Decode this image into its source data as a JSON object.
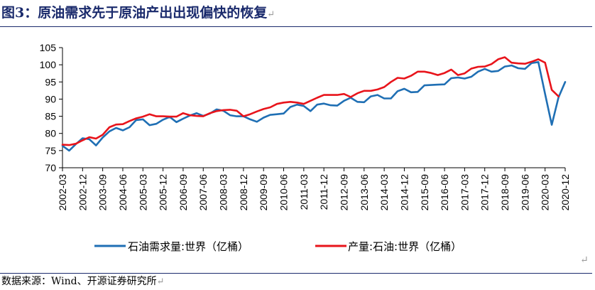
{
  "title": "图3：原油需求先于原油产出出现偏快的恢复",
  "source": "数据来源：Wind、开源证券研究所",
  "return_mark": "↵",
  "chart_data": {
    "type": "line",
    "title": "",
    "xlabel": "",
    "ylabel": "",
    "ylim": [
      70,
      105
    ],
    "yticks": [
      70,
      75,
      80,
      85,
      90,
      95,
      100,
      105
    ],
    "xtick_labels": [
      "2002-03",
      "2002-12",
      "2003-09",
      "2004-06",
      "2005-03",
      "2005-12",
      "2006-09",
      "2007-06",
      "2008-03",
      "2008-12",
      "2009-09",
      "2010-06",
      "2011-03",
      "2011-12",
      "2012-09",
      "2013-06",
      "2014-03",
      "2014-12",
      "2015-09",
      "2016-06",
      "2017-03",
      "2017-12",
      "2018-09",
      "2019-06",
      "2020-03",
      "2020-12"
    ],
    "x_start": "2002-03",
    "x_end": "2020-12",
    "legend_position": "bottom",
    "series": [
      {
        "name": "石油需求量:世界（亿桶）",
        "color": "#1f6fb4",
        "values": [
          76.4,
          75.0,
          76.9,
          78.6,
          78.3,
          76.5,
          78.8,
          80.6,
          81.6,
          80.9,
          81.8,
          83.9,
          84.1,
          82.4,
          82.8,
          84.0,
          84.8,
          83.3,
          84.3,
          85.2,
          85.9,
          85.1,
          85.8,
          87.0,
          86.6,
          85.3,
          85.0,
          85.0,
          84.1,
          83.4,
          84.6,
          85.4,
          85.6,
          85.8,
          87.7,
          88.4,
          88.0,
          86.5,
          88.4,
          88.7,
          88.2,
          88.1,
          89.5,
          90.4,
          89.2,
          89.1,
          90.8,
          91.2,
          90.2,
          90.2,
          92.3,
          93.0,
          92.0,
          92.1,
          94.0,
          94.1,
          94.2,
          94.3,
          96.1,
          96.3,
          96.0,
          96.5,
          98.0,
          98.8,
          98.0,
          98.2,
          99.5,
          99.8,
          99.0,
          98.8,
          100.5,
          100.8,
          91.5,
          82.5,
          90.5,
          95.0
        ]
      },
      {
        "name": "产量:石油:世界（亿桶）",
        "color": "#e8141b",
        "values": [
          76.7,
          76.6,
          77.0,
          78.0,
          78.9,
          78.5,
          79.6,
          81.8,
          82.6,
          82.7,
          83.6,
          84.4,
          84.9,
          85.6,
          85.0,
          85.0,
          84.9,
          84.9,
          85.9,
          85.3,
          85.1,
          85.0,
          85.9,
          86.5,
          86.8,
          86.9,
          86.6,
          85.0,
          85.6,
          86.4,
          87.1,
          87.6,
          88.6,
          89.0,
          89.2,
          89.0,
          88.6,
          89.5,
          90.4,
          91.2,
          91.2,
          91.2,
          91.5,
          90.6,
          91.7,
          92.4,
          92.4,
          92.8,
          93.5,
          95.0,
          96.2,
          96.0,
          96.8,
          98.0,
          98.0,
          97.6,
          97.0,
          97.6,
          98.6,
          97.0,
          97.5,
          98.9,
          99.4,
          99.5,
          100.2,
          101.6,
          102.2,
          100.6,
          100.4,
          100.3,
          100.9,
          101.6,
          100.6,
          92.7,
          90.8
        ]
      }
    ]
  }
}
